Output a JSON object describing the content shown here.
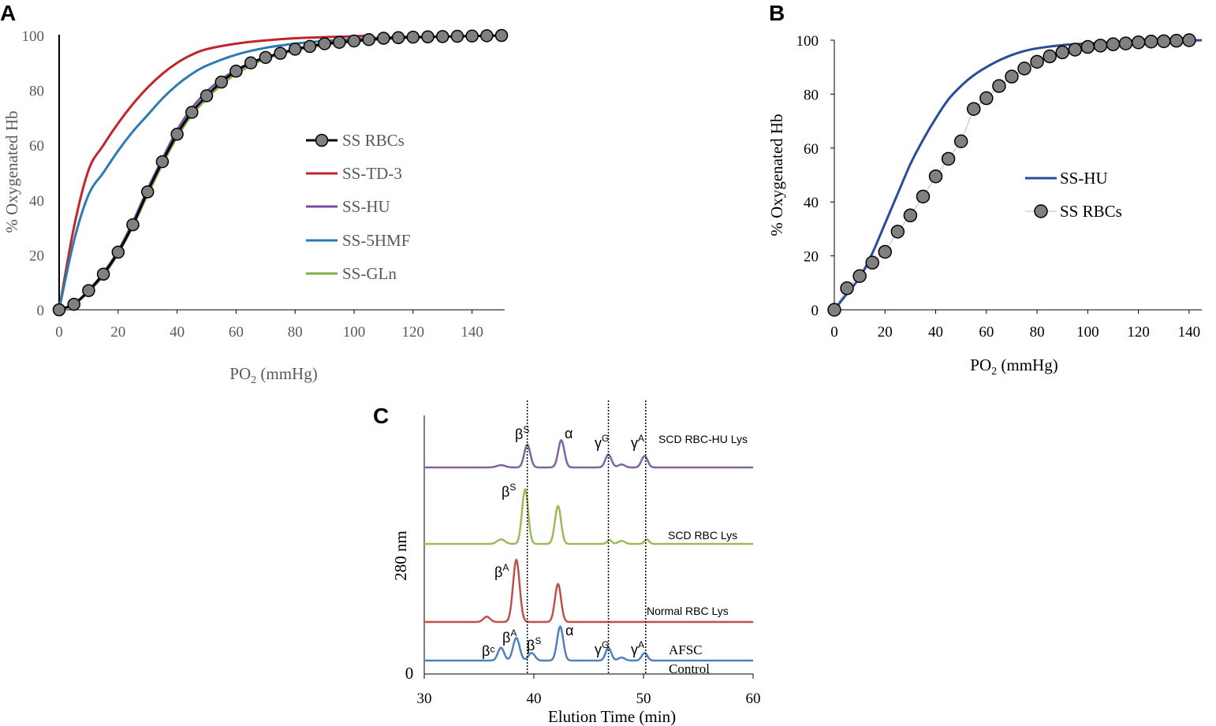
{
  "panel_labels": {
    "a": "A",
    "b": "B",
    "c": "C"
  },
  "colors": {
    "ss_rbcs_marker": "#808080",
    "ss_td3": "#C0262D",
    "ss_hu": "#7B4FA0",
    "ss_5hmf": "#2C7BB6",
    "ss_gln": "#7CB342",
    "ss_hu_b": "#2B4C9B",
    "trace_hu": "#8064A2",
    "trace_scd": "#9BBB59",
    "trace_normal": "#C0504D",
    "trace_afsc": "#4F81BD"
  },
  "chart_data": [
    {
      "id": "A",
      "type": "line",
      "title": "",
      "xlabel_main": "PO",
      "xlabel_sub": "2",
      "xlabel_unit": " (mmHg)",
      "ylabel": "% Oxygenated Hb",
      "xlim": [
        0,
        150
      ],
      "ylim": [
        0,
        100
      ],
      "xticks": [
        "0",
        "20",
        "40",
        "60",
        "80",
        "100",
        "120",
        "140"
      ],
      "yticks": [
        "0",
        "20",
        "40",
        "60",
        "80",
        "100"
      ],
      "legend": [
        "SS RBCs",
        "SS-TD-3",
        "SS-HU",
        "SS-5HMF",
        "SS-GLn"
      ],
      "series": [
        {
          "name": "SS RBCs",
          "style": "line-markers",
          "x": [
            0,
            5,
            10,
            15,
            20,
            25,
            30,
            35,
            40,
            45,
            50,
            55,
            60,
            65,
            70,
            75,
            80,
            85,
            90,
            95,
            100,
            105,
            110,
            115,
            120,
            125,
            130,
            135,
            140,
            145,
            150
          ],
          "y": [
            0,
            2,
            7,
            13,
            21,
            31,
            43,
            54,
            64,
            72,
            78,
            83,
            87,
            90,
            92,
            93.5,
            95,
            96,
            97,
            97.5,
            98,
            98.5,
            99,
            99.2,
            99.4,
            99.5,
            99.6,
            99.7,
            99.8,
            99.9,
            100
          ]
        },
        {
          "name": "SS-TD-3",
          "style": "line",
          "x": [
            0,
            5,
            10,
            15,
            20,
            25,
            30,
            35,
            40,
            45,
            50,
            60,
            70,
            80,
            90,
            100,
            105
          ],
          "y": [
            0,
            30,
            51,
            60,
            68,
            75,
            81,
            86,
            90,
            93,
            95,
            97,
            98.2,
            99,
            99.4,
            99.7,
            100
          ]
        },
        {
          "name": "SS-HU",
          "style": "line",
          "x": [
            0,
            5,
            10,
            15,
            20,
            25,
            30,
            35,
            40,
            45,
            50,
            55,
            60,
            65,
            70,
            80,
            90,
            100,
            110,
            120
          ],
          "y": [
            0,
            2.2,
            7,
            13.5,
            21.5,
            32,
            44,
            55,
            65.5,
            73.5,
            79.5,
            84,
            87.5,
            90,
            92,
            95,
            97,
            98.3,
            99.2,
            99.6
          ]
        },
        {
          "name": "SS-5HMF",
          "style": "line",
          "x": [
            0,
            5,
            10,
            15,
            20,
            25,
            30,
            35,
            40,
            45,
            50,
            60,
            70,
            80,
            90,
            100,
            110,
            120
          ],
          "y": [
            0,
            25,
            42,
            50,
            58,
            65,
            71,
            77,
            82,
            86,
            89,
            93,
            95.5,
            97,
            98,
            98.7,
            99.2,
            99.5
          ]
        },
        {
          "name": "SS-GLn",
          "style": "line",
          "x": [
            0,
            5,
            10,
            15,
            20,
            25,
            30,
            35,
            40,
            45,
            50,
            55,
            60,
            65,
            70,
            80,
            90,
            100,
            110,
            120,
            130,
            140,
            150
          ],
          "y": [
            0,
            2,
            6.5,
            12.5,
            20.5,
            30.5,
            42,
            53,
            63,
            71,
            77,
            82,
            86,
            89,
            91.5,
            94.5,
            96.5,
            97.8,
            98.6,
            99.2,
            99.5,
            99.8,
            100
          ]
        }
      ]
    },
    {
      "id": "B",
      "type": "line",
      "title": "",
      "xlabel_main": "PO",
      "xlabel_sub": "2",
      "xlabel_unit": " (mmHg)",
      "ylabel": "% Oxygenated Hb",
      "xlim": [
        0,
        145
      ],
      "ylim": [
        0,
        100
      ],
      "xticks": [
        "0",
        "20",
        "40",
        "60",
        "80",
        "100",
        "120",
        "140"
      ],
      "yticks": [
        "0",
        "20",
        "40",
        "60",
        "80",
        "100"
      ],
      "legend": [
        "SS-HU",
        "SS RBCs"
      ],
      "series": [
        {
          "name": "SS-HU",
          "style": "line",
          "x": [
            0,
            5,
            10,
            15,
            20,
            25,
            30,
            35,
            40,
            45,
            50,
            55,
            60,
            65,
            70,
            75,
            80,
            90,
            100,
            110,
            120,
            130,
            140,
            145
          ],
          "y": [
            0,
            6,
            12,
            21,
            32,
            43,
            54,
            63,
            71,
            78,
            83,
            87,
            90,
            92.5,
            94.5,
            96,
            97,
            98.2,
            98.8,
            99.2,
            99.5,
            99.7,
            99.9,
            100
          ]
        },
        {
          "name": "SS RBCs",
          "style": "markers",
          "x": [
            0,
            5,
            10,
            15,
            20,
            25,
            30,
            35,
            40,
            45,
            50,
            55,
            60,
            65,
            70,
            75,
            80,
            85,
            90,
            95,
            100,
            105,
            110,
            115,
            120,
            125,
            130,
            135,
            140
          ],
          "y": [
            0,
            8,
            12.5,
            17.5,
            21.5,
            29,
            35,
            42,
            49.5,
            56,
            62.5,
            74.5,
            78.5,
            83,
            86.5,
            89.5,
            92,
            94,
            95.5,
            96.5,
            97.5,
            98,
            98.5,
            98.8,
            99.2,
            99.5,
            99.6,
            99.8,
            100
          ]
        }
      ]
    },
    {
      "id": "C",
      "type": "line",
      "title": "",
      "xlabel": "Elution Time (min)",
      "ylabel": "280 nm",
      "xlim": [
        30,
        60
      ],
      "xticks": [
        "30",
        "40",
        "50",
        "60"
      ],
      "yticks": [
        "0"
      ],
      "reference_lines_x": [
        39.4,
        46.8,
        50.2
      ],
      "series": [
        {
          "name": "SCD RBC-HU Lys",
          "offset": 3,
          "peaks": [
            {
              "x": 37,
              "h": 0.03,
              "w": 0.4
            },
            {
              "x": 39.4,
              "h": 0.3,
              "w": 0.28
            },
            {
              "x": 42.5,
              "h": 0.36,
              "w": 0.28
            },
            {
              "x": 46.8,
              "h": 0.17,
              "w": 0.28
            },
            {
              "x": 48,
              "h": 0.04,
              "w": 0.3
            },
            {
              "x": 50.1,
              "h": 0.15,
              "w": 0.28
            }
          ]
        },
        {
          "name": "SCD RBC Lys",
          "offset": 2,
          "peaks": [
            {
              "x": 37,
              "h": 0.06,
              "w": 0.35
            },
            {
              "x": 39.2,
              "h": 0.72,
              "w": 0.28
            },
            {
              "x": 42.2,
              "h": 0.5,
              "w": 0.28
            },
            {
              "x": 46.9,
              "h": 0.05,
              "w": 0.22
            },
            {
              "x": 48,
              "h": 0.04,
              "w": 0.3
            },
            {
              "x": 50.3,
              "h": 0.06,
              "w": 0.22
            }
          ]
        },
        {
          "name": "Normal RBC Lys",
          "offset": 1,
          "peaks": [
            {
              "x": 35.7,
              "h": 0.07,
              "w": 0.3
            },
            {
              "x": 38.4,
              "h": 0.82,
              "w": 0.3
            },
            {
              "x": 42.2,
              "h": 0.5,
              "w": 0.28
            }
          ]
        },
        {
          "name": "AFSC Control",
          "offset": 0,
          "peaks": [
            {
              "x": 37,
              "h": 0.17,
              "w": 0.28
            },
            {
              "x": 38.4,
              "h": 0.3,
              "w": 0.3
            },
            {
              "x": 39.8,
              "h": 0.1,
              "w": 0.3
            },
            {
              "x": 42.4,
              "h": 0.45,
              "w": 0.28
            },
            {
              "x": 46.8,
              "h": 0.17,
              "w": 0.26
            },
            {
              "x": 48,
              "h": 0.04,
              "w": 0.3
            },
            {
              "x": 50.1,
              "h": 0.1,
              "w": 0.26
            }
          ]
        }
      ],
      "trace_labels": {
        "hu": "SCD RBC-HU Lys",
        "scd": "SCD RBC Lys",
        "normal": "Normal RBC Lys",
        "afsc_line1": "AFSC",
        "afsc_line2": "Control"
      },
      "peak_annotations": {
        "beta": "β",
        "beta_c": "βᶜ",
        "alpha": "α",
        "gamma": "γ",
        "sup_s": "S",
        "sup_a": "A",
        "sup_g": "G"
      }
    }
  ]
}
